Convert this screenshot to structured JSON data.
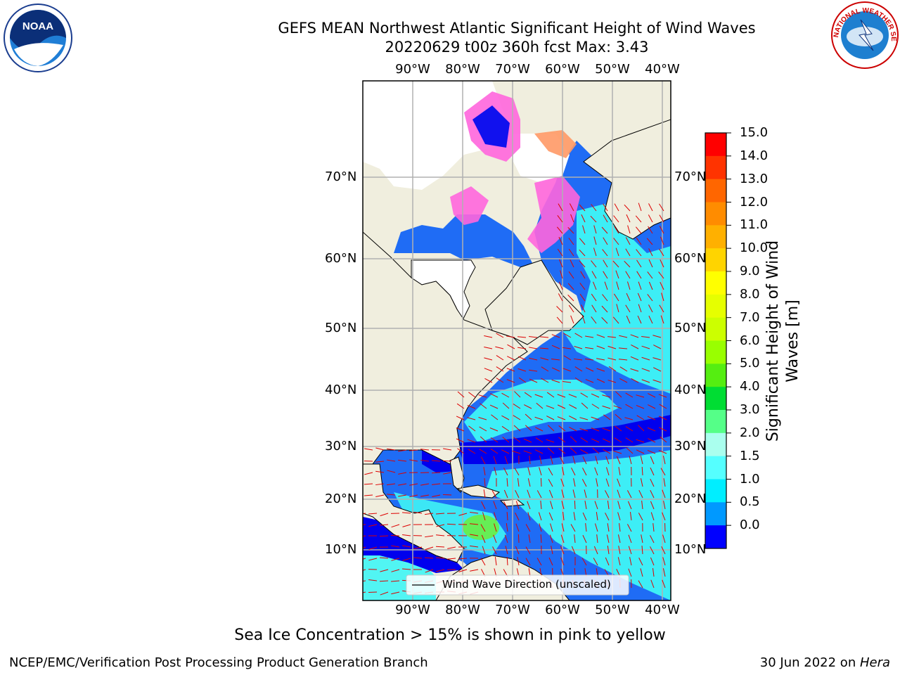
{
  "title": {
    "line1": "GEFS MEAN Northwest Atlantic Significant Height of Wind Waves",
    "line2": "20220629 t00z 360h fcst   Max: 3.43"
  },
  "logos": {
    "noara": "NOAA",
    "nws": "NATIONAL WEATHER SERVICE"
  },
  "map": {
    "lon_labels": [
      "90°W",
      "80°W",
      "70°W",
      "60°W",
      "50°W",
      "40°W"
    ],
    "lat_labels": [
      "70°N",
      "60°N",
      "50°N",
      "40°N",
      "30°N",
      "20°N",
      "10°N"
    ],
    "legend": "Wind Wave Direction (unscaled)"
  },
  "colorbar": {
    "label_line1": "Significant Height of Wind",
    "label_line2": "Waves [m]",
    "ticks": [
      "15.0",
      "14.0",
      "13.0",
      "12.0",
      "11.0",
      "10.0",
      "9.0",
      "8.0",
      "7.0",
      "6.0",
      "5.0",
      "4.0",
      "3.0",
      "2.0",
      "1.5",
      "1.0",
      "0.5",
      "0.0"
    ],
    "colors_top_to_bottom": [
      "#ff0000",
      "#ff3300",
      "#ff6600",
      "#ff8c00",
      "#ffb000",
      "#ffd400",
      "#ffff00",
      "#e6ff00",
      "#ccff00",
      "#99ff00",
      "#55ee11",
      "#00dd33",
      "#55ff88",
      "#aaffee",
      "#55ffff",
      "#00eeff",
      "#0099ff",
      "#0000ff"
    ]
  },
  "caption": "Sea Ice Concentration > 15% is shown in pink to yellow",
  "footer": {
    "left": "NCEP/EMC/Verification Post Processing Product Generation Branch",
    "right_prefix": "30 Jun 2022 on ",
    "right_host": "Hera"
  }
}
